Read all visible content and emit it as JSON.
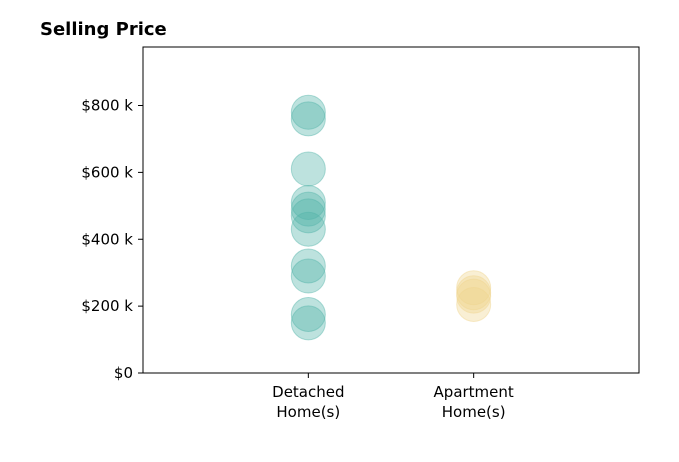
{
  "chart_data": {
    "type": "scatter",
    "title": "Selling Price",
    "xlabel": "",
    "ylabel": "",
    "categories": [
      "Detached\nHome(s)",
      "Apartment\nHome(s)"
    ],
    "xlim": [
      0,
      3
    ],
    "ylim": [
      0,
      975000
    ],
    "yticks": [
      {
        "value": 0,
        "label": "$0"
      },
      {
        "value": 200000,
        "label": "$200 k"
      },
      {
        "value": 400000,
        "label": "$400 k"
      },
      {
        "value": 600000,
        "label": "$600 k"
      },
      {
        "value": 800000,
        "label": "$800 k"
      }
    ],
    "grid": false,
    "series": [
      {
        "category_index": 0,
        "color": "#52b3a8",
        "values": [
          780000,
          760000,
          610000,
          510000,
          490000,
          470000,
          430000,
          320000,
          290000,
          175000,
          150000
        ]
      },
      {
        "category_index": 1,
        "color": "#f0d48e",
        "values": [
          255000,
          240000,
          230000,
          205000
        ]
      }
    ]
  }
}
